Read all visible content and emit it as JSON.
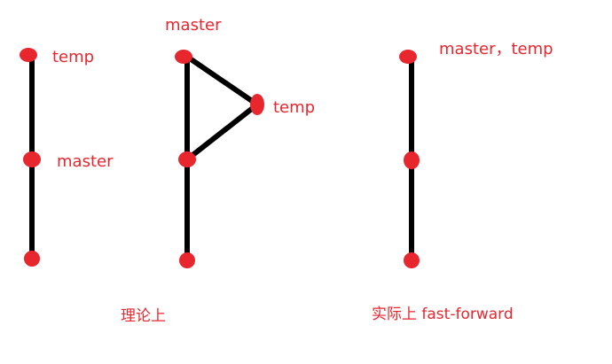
{
  "colors": {
    "line": "#000000",
    "node": "#e8262d",
    "text": "#e8262d",
    "background": "#ffffff"
  },
  "diagram": {
    "left": {
      "labels": {
        "top": "temp",
        "middle": "master"
      }
    },
    "middle": {
      "labels": {
        "top": "master",
        "branch": "temp"
      },
      "caption": "理论上"
    },
    "right": {
      "labels": {
        "top": "master，temp"
      },
      "caption": "实际上  fast-forward"
    }
  }
}
